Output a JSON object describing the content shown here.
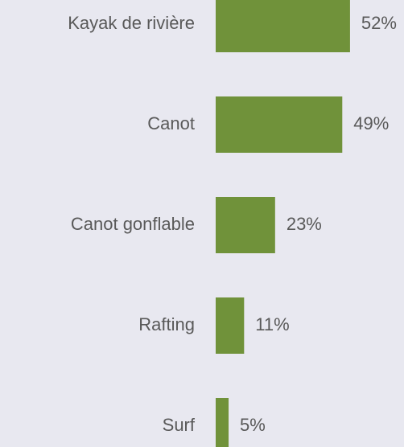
{
  "chart_data": {
    "type": "barh",
    "categories": [
      "Kayak de rivière",
      "Canot",
      "Canot gonflable",
      "Rafting",
      "Surf"
    ],
    "values": [
      52,
      49,
      23,
      11,
      5
    ],
    "value_labels": [
      "52%",
      "49%",
      "23%",
      "11%",
      "5%"
    ],
    "color": "#70923a",
    "xlim": [
      0,
      60
    ]
  }
}
